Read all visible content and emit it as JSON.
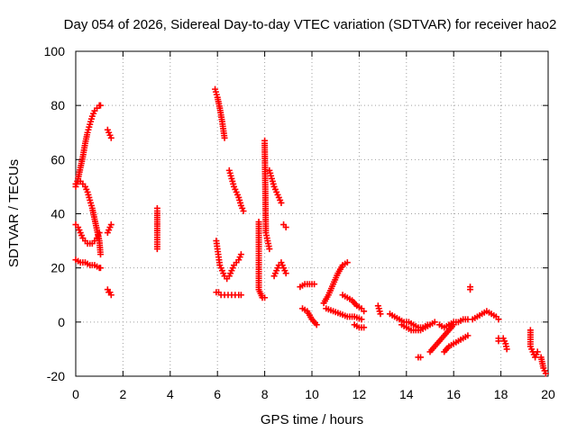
{
  "chart_data": {
    "type": "scatter",
    "title": "Day 054 of 2026, Sidereal Day-to-day VTEC variation (SDTVAR) for receiver hao2",
    "xlabel": "GPS time / hours",
    "ylabel": "SDTVAR / TECUs",
    "xlim": [
      0,
      20
    ],
    "ylim": [
      -20,
      100
    ],
    "xticks": [
      0,
      2,
      4,
      6,
      8,
      10,
      12,
      14,
      16,
      18,
      20
    ],
    "yticks": [
      -20,
      0,
      20,
      40,
      60,
      80,
      100
    ],
    "grid": true,
    "marker": "plus",
    "color": "#ff0000",
    "segments": [
      {
        "x": [
          0.0,
          0.1,
          0.2,
          0.3,
          0.4,
          0.5,
          0.6,
          0.7,
          0.8,
          0.9,
          1.0,
          1.05
        ],
        "y": [
          50,
          53,
          57,
          61,
          66,
          70,
          73,
          76,
          78,
          79,
          80,
          80
        ]
      },
      {
        "x": [
          0.0,
          0.1,
          0.2,
          0.3,
          0.4,
          0.5,
          0.6,
          0.7,
          0.8,
          0.9,
          1.0,
          1.05
        ],
        "y": [
          51,
          52,
          52,
          51,
          50,
          48,
          45,
          42,
          38,
          34,
          30,
          25
        ]
      },
      {
        "x": [
          0.0,
          0.1,
          0.2,
          0.3,
          0.4,
          0.5,
          0.6,
          0.7,
          0.8,
          0.9,
          1.0
        ],
        "y": [
          36,
          35,
          33,
          31,
          30,
          29,
          29,
          29,
          30,
          31,
          33
        ]
      },
      {
        "x": [
          0.0,
          0.2,
          0.4,
          0.6,
          0.8,
          1.0,
          1.05
        ],
        "y": [
          23,
          22,
          22,
          21,
          21,
          20,
          20
        ]
      },
      {
        "x": [
          1.35,
          1.4,
          1.45,
          1.5
        ],
        "y": [
          71,
          70,
          69,
          68
        ]
      },
      {
        "x": [
          1.35,
          1.4,
          1.45,
          1.5
        ],
        "y": [
          33,
          34,
          35,
          36
        ]
      },
      {
        "x": [
          1.35,
          1.4,
          1.45,
          1.5
        ],
        "y": [
          12,
          11,
          11,
          10
        ]
      },
      {
        "x": [
          3.45,
          3.45,
          3.45,
          3.45
        ],
        "y": [
          42,
          41,
          33,
          27
        ]
      },
      {
        "x": [
          5.9,
          6.0,
          6.1,
          6.2,
          6.3
        ],
        "y": [
          86,
          83,
          79,
          74,
          68
        ]
      },
      {
        "x": [
          5.95,
          6.0,
          6.05,
          6.1,
          6.2,
          6.3,
          6.4,
          6.5,
          6.6,
          6.7,
          6.8,
          6.9,
          7.0
        ],
        "y": [
          30,
          27,
          24,
          21,
          19,
          17,
          16,
          17,
          19,
          21,
          22,
          23,
          25
        ]
      },
      {
        "x": [
          5.95,
          6.05,
          6.15,
          6.3,
          6.45,
          6.6,
          6.75,
          6.9,
          7.0
        ],
        "y": [
          11,
          11,
          10,
          10,
          10,
          10,
          10,
          10,
          10
        ]
      },
      {
        "x": [
          6.5,
          6.6,
          6.7,
          6.8,
          6.9,
          7.0,
          7.1
        ],
        "y": [
          56,
          53,
          50,
          48,
          46,
          43,
          41
        ]
      },
      {
        "x": [
          7.75,
          7.75,
          7.75,
          7.9,
          8.0
        ],
        "y": [
          37,
          27,
          12,
          9,
          9
        ]
      },
      {
        "x": [
          8.0,
          8.0,
          8.05,
          8.1,
          8.15,
          8.2
        ],
        "y": [
          67,
          66,
          33,
          31,
          29,
          27
        ]
      },
      {
        "x": [
          8.2,
          8.3,
          8.4,
          8.5,
          8.6,
          8.7
        ],
        "y": [
          56,
          53,
          50,
          48,
          46,
          44
        ]
      },
      {
        "x": [
          8.4,
          8.5,
          8.6,
          8.7,
          8.8,
          8.9
        ],
        "y": [
          17,
          19,
          21,
          22,
          20,
          18
        ]
      },
      {
        "x": [
          8.8,
          8.9
        ],
        "y": [
          36,
          35
        ]
      },
      {
        "x": [
          9.5,
          9.7,
          9.9,
          10.1
        ],
        "y": [
          13,
          14,
          14,
          14
        ]
      },
      {
        "x": [
          9.6,
          9.8,
          10.0,
          10.2
        ],
        "y": [
          5,
          4,
          1,
          -1
        ]
      },
      {
        "x": [
          10.5,
          10.7,
          10.9,
          11.1,
          11.3,
          11.5
        ],
        "y": [
          7,
          10,
          14,
          18,
          21,
          22
        ]
      },
      {
        "x": [
          10.6,
          10.9,
          11.2,
          11.5,
          11.8,
          12.1
        ],
        "y": [
          5,
          4,
          3,
          2,
          2,
          1
        ]
      },
      {
        "x": [
          11.3,
          11.5,
          11.7,
          11.9,
          12.1,
          12.2
        ],
        "y": [
          10,
          9,
          8,
          6,
          5,
          4
        ]
      },
      {
        "x": [
          11.8,
          12.0,
          12.2
        ],
        "y": [
          -1,
          -2,
          -2
        ]
      },
      {
        "x": [
          12.8,
          12.9
        ],
        "y": [
          6,
          3
        ]
      },
      {
        "x": [
          13.3,
          13.5,
          13.7,
          13.9,
          14.1,
          14.3,
          14.5,
          14.7,
          14.9
        ],
        "y": [
          3,
          2,
          1,
          0,
          0,
          -1,
          -2,
          -2,
          -1
        ]
      },
      {
        "x": [
          13.8,
          14.0,
          14.2,
          14.4,
          14.6,
          14.8,
          15.0,
          15.2
        ],
        "y": [
          -1,
          -2,
          -3,
          -3,
          -3,
          -2,
          -1,
          0
        ]
      },
      {
        "x": [
          14.5,
          14.6
        ],
        "y": [
          -13,
          -13
        ]
      },
      {
        "x": [
          15.0,
          15.2,
          15.4,
          15.6,
          15.8,
          16.0
        ],
        "y": [
          -11,
          -9,
          -7,
          -5,
          -3,
          -1
        ]
      },
      {
        "x": [
          15.4,
          15.6,
          15.8,
          16.0,
          16.2,
          16.4,
          16.6
        ],
        "y": [
          -1,
          -2,
          -1,
          0,
          0,
          1,
          1
        ]
      },
      {
        "x": [
          15.6,
          15.8,
          16.0,
          16.2,
          16.4,
          16.6
        ],
        "y": [
          -11,
          -9,
          -8,
          -7,
          -6,
          -5
        ]
      },
      {
        "x": [
          16.7,
          16.7
        ],
        "y": [
          13,
          12
        ]
      },
      {
        "x": [
          16.8,
          17.0,
          17.2,
          17.4,
          17.6,
          17.8,
          17.9
        ],
        "y": [
          1,
          2,
          3,
          4,
          3,
          2,
          1
        ]
      },
      {
        "x": [
          17.9,
          17.9
        ],
        "y": [
          -6,
          -7
        ]
      },
      {
        "x": [
          18.1,
          18.15,
          18.2,
          18.25
        ],
        "y": [
          -6,
          -7,
          -8,
          -10
        ]
      },
      {
        "x": [
          19.25,
          19.25,
          19.35,
          19.45,
          19.55
        ],
        "y": [
          -3,
          -9,
          -11,
          -13,
          -11
        ]
      },
      {
        "x": [
          19.7,
          19.8,
          19.9
        ],
        "y": [
          -13,
          -17,
          -19
        ]
      }
    ]
  }
}
